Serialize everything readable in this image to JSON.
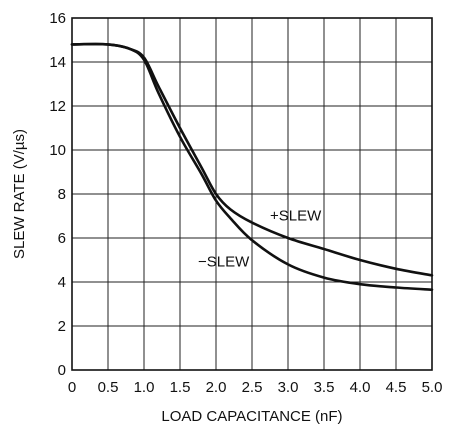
{
  "chart_data": {
    "type": "line",
    "title": "",
    "xlabel": "LOAD CAPACITANCE (nF)",
    "ylabel": "SLEW RATE (V/µs)",
    "xlim": [
      0,
      5
    ],
    "ylim": [
      0,
      16
    ],
    "grid": true,
    "x_ticks": [
      0,
      0.5,
      1.0,
      1.5,
      2.0,
      2.5,
      3.0,
      3.5,
      4.0,
      4.5,
      5.0
    ],
    "x_tick_labels": [
      "0",
      "0.5",
      "1.0",
      "1.5",
      "2.0",
      "2.5",
      "3.0",
      "3.5",
      "4.0",
      "4.5",
      "5.0"
    ],
    "y_ticks": [
      0,
      2,
      4,
      6,
      8,
      10,
      12,
      14,
      16
    ],
    "y_tick_labels": [
      "0",
      "2",
      "4",
      "6",
      "8",
      "10",
      "12",
      "14",
      "16"
    ],
    "series": [
      {
        "name": "+SLEW",
        "x": [
          0,
          0.5,
          0.8,
          1.0,
          1.2,
          1.5,
          1.8,
          2.0,
          2.2,
          2.5,
          3.0,
          3.5,
          4.0,
          4.5,
          5.0
        ],
        "y": [
          14.8,
          14.8,
          14.6,
          14.2,
          12.9,
          11.0,
          9.2,
          8.0,
          7.3,
          6.7,
          6.0,
          5.5,
          5.0,
          4.6,
          4.3
        ]
      },
      {
        "name": "−SLEW",
        "x": [
          0,
          0.5,
          0.8,
          1.0,
          1.2,
          1.5,
          1.8,
          2.0,
          2.2,
          2.5,
          3.0,
          3.5,
          4.0,
          4.5,
          5.0
        ],
        "y": [
          14.8,
          14.8,
          14.6,
          14.1,
          12.6,
          10.6,
          8.9,
          7.7,
          6.9,
          5.9,
          4.8,
          4.2,
          3.9,
          3.75,
          3.65
        ]
      }
    ],
    "annotations": [
      {
        "text": "+SLEW",
        "x": 2.75,
        "y": 6.8
      },
      {
        "text": "−SLEW",
        "x": 1.75,
        "y": 4.7
      }
    ]
  }
}
